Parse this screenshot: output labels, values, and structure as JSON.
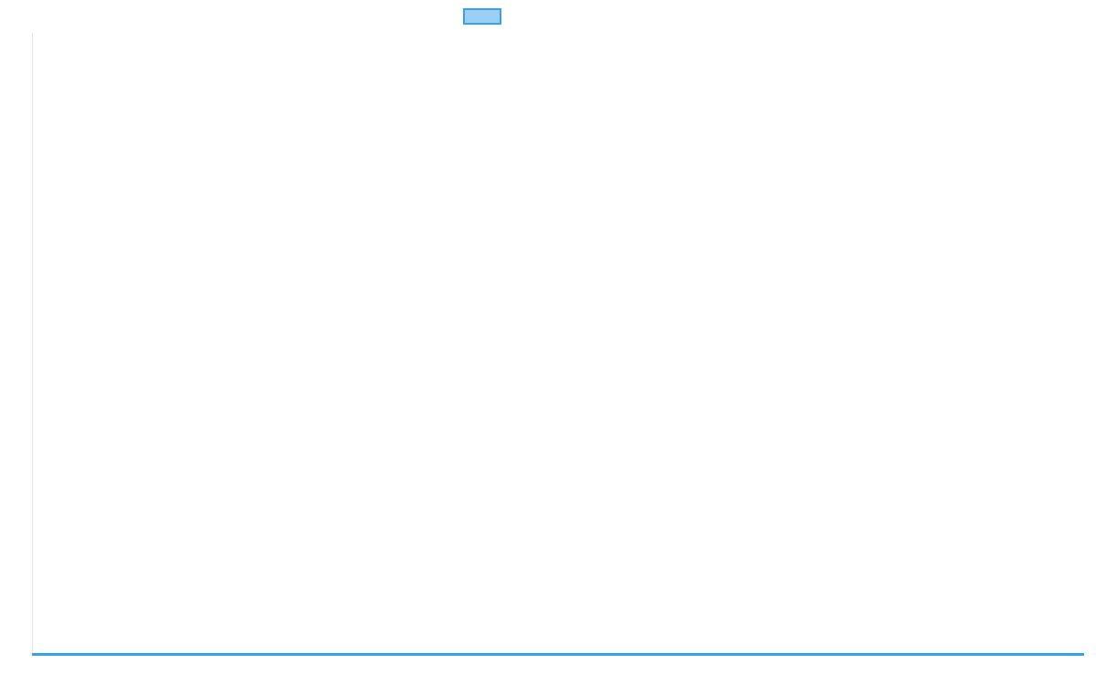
{
  "chart_data": {
    "type": "line",
    "title": "",
    "xlabel": "",
    "ylabel": "",
    "categories": [],
    "series": [
      {
        "values": [],
        "color": "#36a2eb",
        "fill": "#9ad0f5"
      }
    ],
    "legend": "top",
    "grid": false
  }
}
